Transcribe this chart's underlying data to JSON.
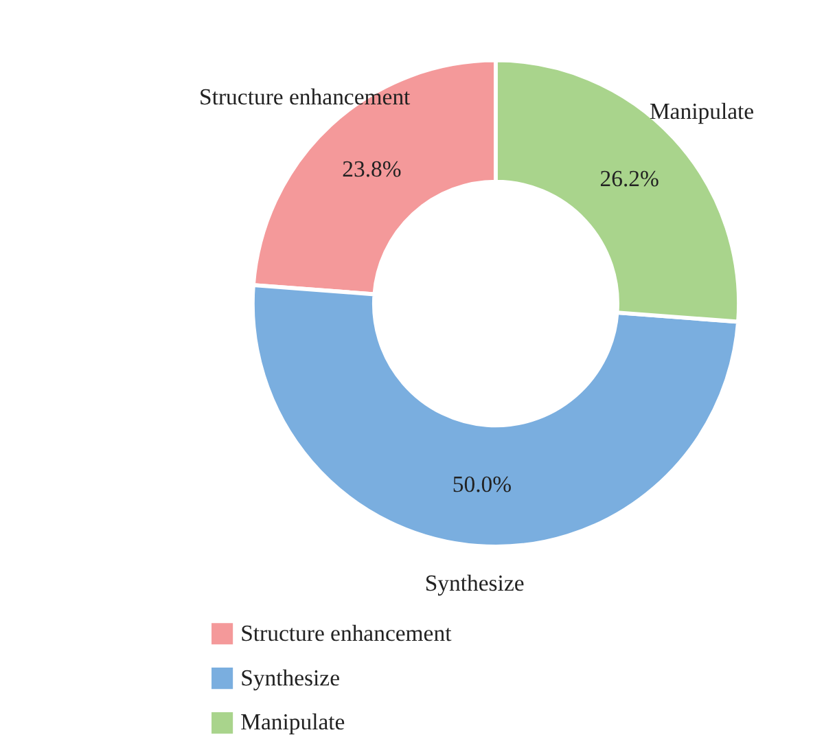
{
  "chart_data": {
    "type": "donut",
    "categories": [
      "Structure enhancement",
      "Synthesize",
      "Manipulate"
    ],
    "values": [
      23.8,
      50.0,
      26.2
    ],
    "colors": [
      "#f4999a",
      "#7aaedf",
      "#a9d48c"
    ],
    "value_labels": [
      "23.8%",
      "50.0%",
      "26.2%"
    ],
    "legend": "bottom"
  }
}
